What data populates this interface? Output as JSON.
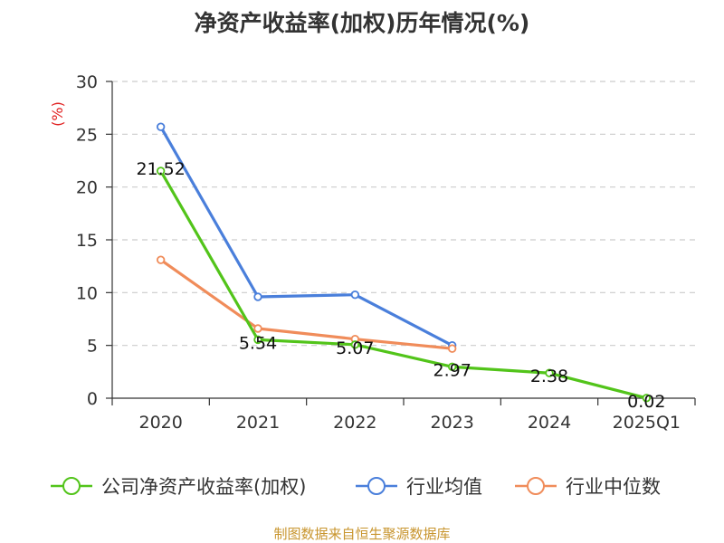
{
  "chart_data": {
    "type": "line",
    "title": "净资产收益率(加权)历年情况(%)",
    "ylabel": "(%)",
    "xlabel": "",
    "categories": [
      "2020",
      "2021",
      "2022",
      "2023",
      "2024",
      "2025Q1"
    ],
    "ylim": [
      0,
      30
    ],
    "yticks": [
      0,
      5,
      10,
      15,
      20,
      25,
      30
    ],
    "grid": true,
    "legend_position": "bottom",
    "series": [
      {
        "name": "公司净资产收益率(加权)",
        "color": "#52c41a",
        "values": [
          21.52,
          5.54,
          5.07,
          2.97,
          2.38,
          0.02
        ],
        "labels": [
          "21.52",
          "5.54",
          "5.07",
          "2.97",
          "2.38",
          "0.02"
        ]
      },
      {
        "name": "行业均值",
        "color": "#4a7fdb",
        "values": [
          25.7,
          9.6,
          9.8,
          5.0,
          null,
          null
        ]
      },
      {
        "name": "行业中位数",
        "color": "#f08c5a",
        "values": [
          13.1,
          6.6,
          5.6,
          4.7,
          null,
          null
        ]
      }
    ]
  },
  "source": "制图数据来自恒生聚源数据库"
}
